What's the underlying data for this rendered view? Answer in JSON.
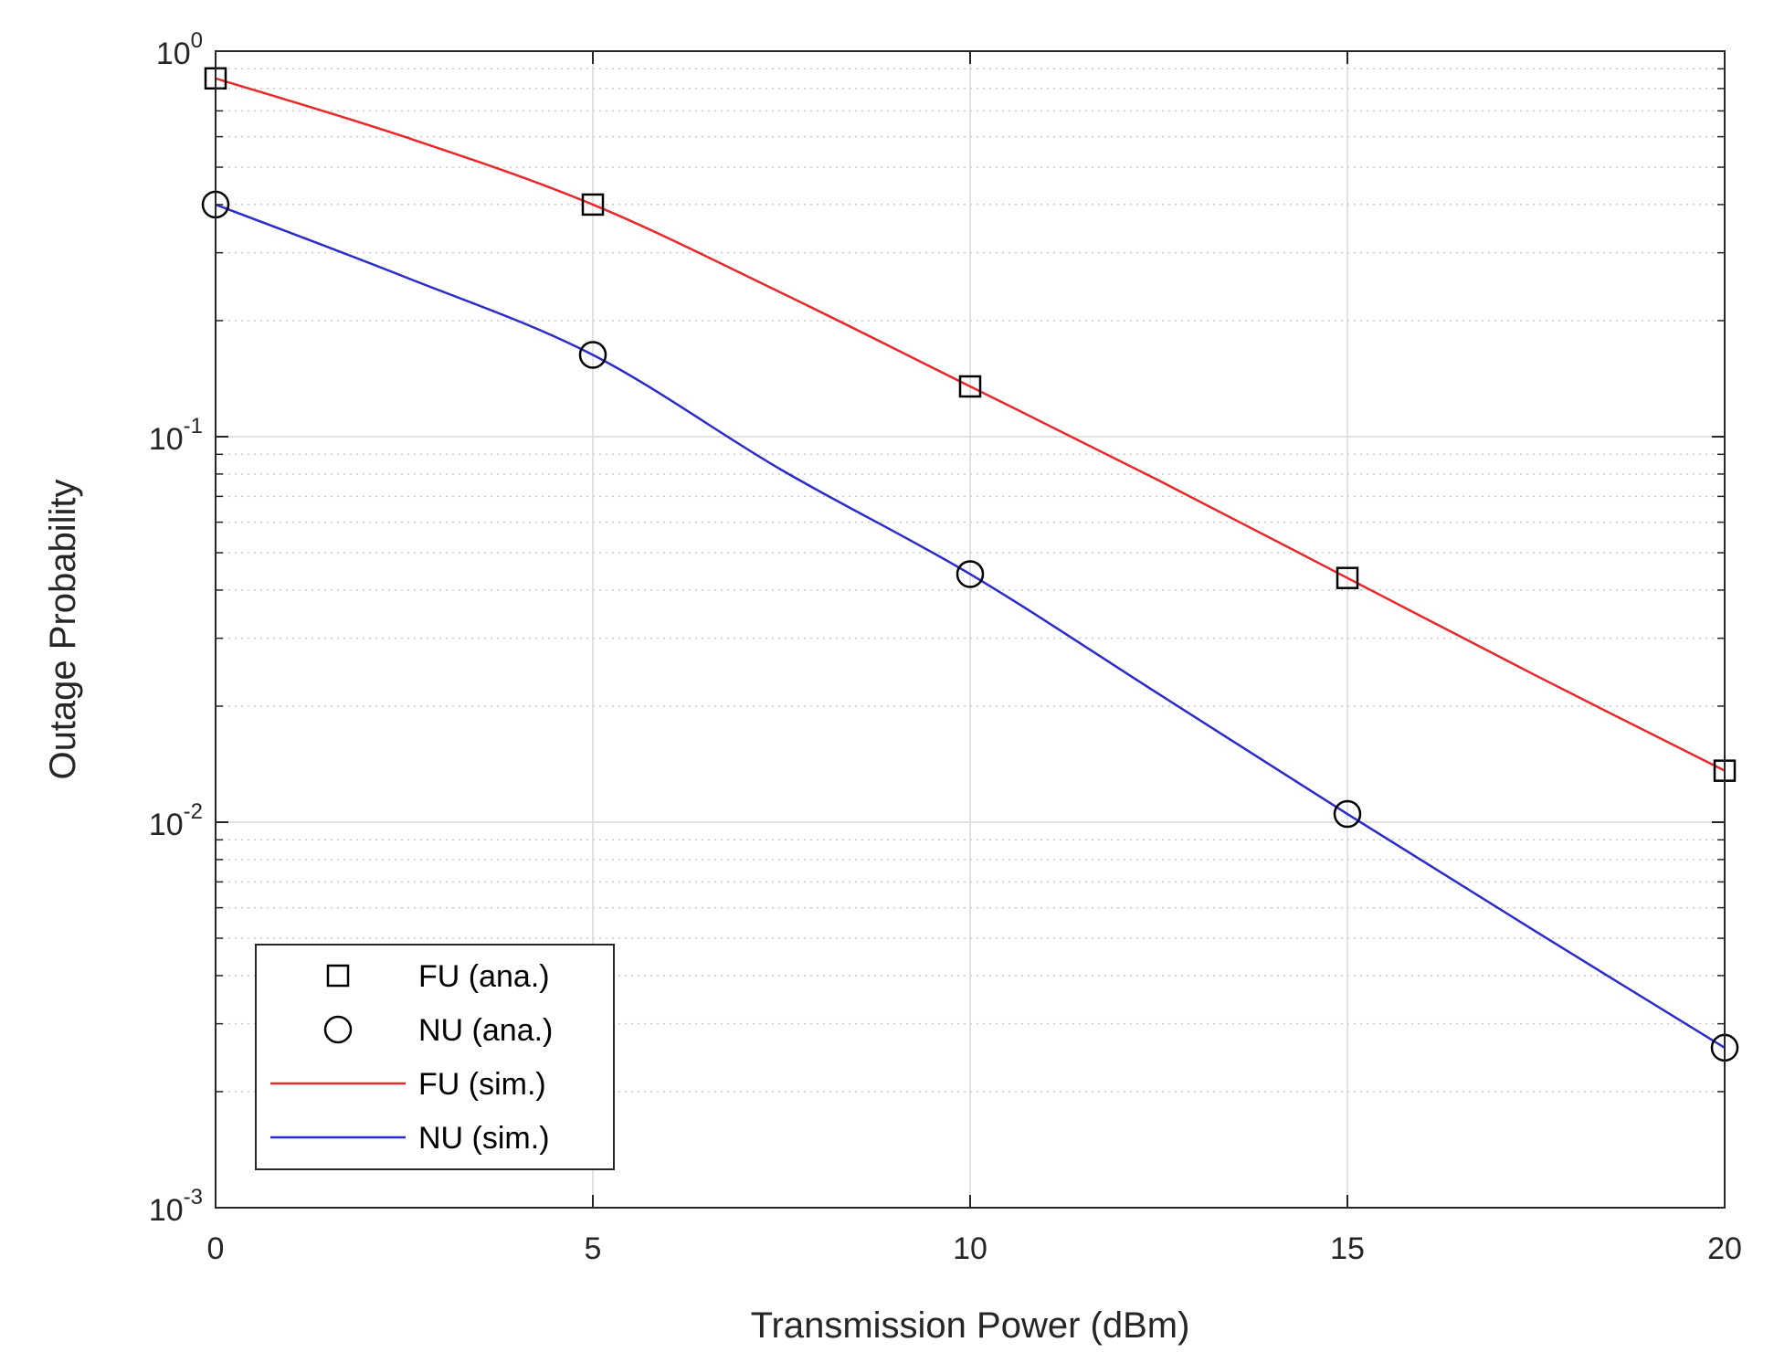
{
  "chart_data": {
    "type": "line",
    "title": "",
    "xlabel": "Transmission Power (dBm)",
    "ylabel": "Outage Probability",
    "xlim": [
      0,
      20
    ],
    "ylim": [
      0.001,
      1
    ],
    "yscale": "log",
    "grid": true,
    "legend_position": "bottom-left",
    "x_ticks": [
      "0",
      "5",
      "10",
      "15",
      "20"
    ],
    "y_ticks": [
      {
        "base": "10",
        "exp": "-3"
      },
      {
        "base": "10",
        "exp": "-2"
      },
      {
        "base": "10",
        "exp": "-1"
      },
      {
        "base": "10",
        "exp": "0"
      }
    ],
    "series": [
      {
        "name": "FU (ana.)",
        "style": "markers",
        "marker": "square",
        "color": "#000000",
        "x": [
          0,
          5,
          10,
          15,
          20
        ],
        "y": [
          0.85,
          0.4,
          0.135,
          0.043,
          0.0136
        ]
      },
      {
        "name": "NU (ana.)",
        "style": "markers",
        "marker": "circle",
        "color": "#000000",
        "x": [
          0,
          5,
          10,
          15,
          20
        ],
        "y": [
          0.4,
          0.163,
          0.044,
          0.0105,
          0.0026
        ]
      },
      {
        "name": "FU (sim.)",
        "style": "line",
        "color": "#e8282b",
        "x": [
          0,
          2.5,
          5,
          7.5,
          10,
          12.5,
          15,
          17.5,
          20
        ],
        "y": [
          0.85,
          0.6,
          0.4,
          0.236,
          0.135,
          0.077,
          0.043,
          0.024,
          0.0136
        ]
      },
      {
        "name": "NU (sim.)",
        "style": "line",
        "color": "#2b2bcc",
        "x": [
          0,
          2.5,
          5,
          7.5,
          10,
          12.5,
          15,
          17.5,
          20
        ],
        "y": [
          0.4,
          0.26,
          0.163,
          0.082,
          0.044,
          0.0215,
          0.0105,
          0.0052,
          0.0026
        ]
      }
    ]
  }
}
